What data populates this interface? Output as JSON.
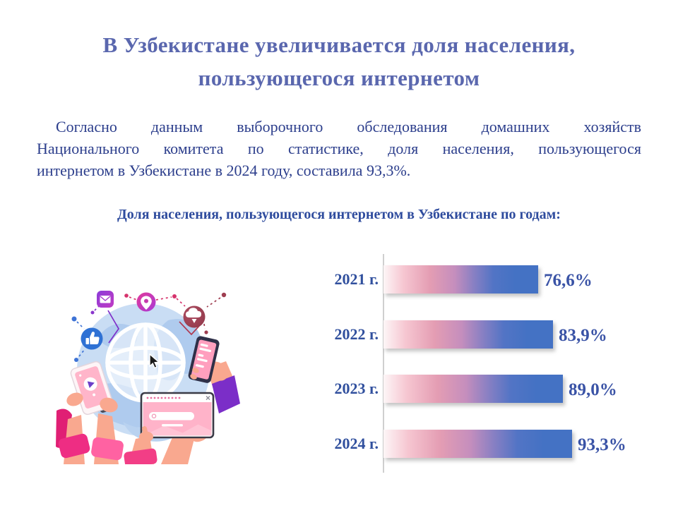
{
  "page": {
    "title_line1": "В Узбекистане увеличивается доля населения,",
    "title_line2": "пользующегося интернетом",
    "intro_lines": [
      "Согласно данным выборочного обследования домашних хозяйств",
      "Национального комитета по статистике, доля населения, пользующегося",
      "интернетом в Узбекистане в 2024 году, составила 93,3%."
    ]
  },
  "chart_data": {
    "type": "bar",
    "orientation": "horizontal",
    "title": "Доля населения, пользующегося интернетом в Узбекистане по годам:",
    "categories": [
      "2021 г.",
      "2022 г.",
      "2023 г.",
      "2024 г."
    ],
    "values": [
      76.6,
      83.9,
      89.0,
      93.3
    ],
    "value_labels": [
      "76,6%",
      "83,9%",
      "89,0%",
      "93,3%"
    ],
    "xlim": [
      0,
      100
    ],
    "grid": false,
    "legend": false,
    "bar_color": "#4472C4",
    "bar_gradient": [
      "#FDF6F7",
      "#E49DB3",
      "#8A80C3",
      "#4472C4"
    ],
    "category_label_color": "#31509E",
    "value_label_color": "#3A53A6"
  },
  "illustration": {
    "icons": [
      "globe-icon",
      "cursor-icon",
      "like-icon",
      "mail-icon",
      "location-pin-icon",
      "cloud-icon",
      "smartphone-icon",
      "tablet-icon",
      "browser-search-bar"
    ]
  },
  "colors": {
    "title": "#5A67AE",
    "body_text": "#2C3E8C",
    "heading": "#2F4C9E",
    "axis_line": "#CFCFCF"
  }
}
